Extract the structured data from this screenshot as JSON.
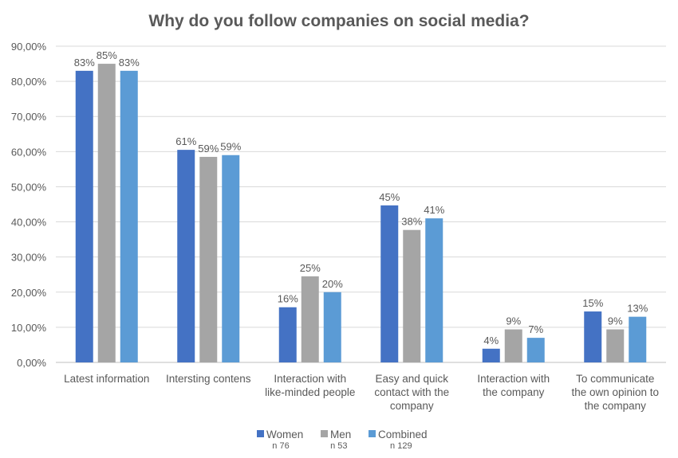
{
  "chart_data": {
    "type": "bar",
    "title": "Why do you follow companies on social media?",
    "categories": [
      [
        "Latest information"
      ],
      [
        "Intersting contens"
      ],
      [
        "Interaction with",
        "like-minded people"
      ],
      [
        "Easy and quick",
        "contact with the",
        "company"
      ],
      [
        "Interaction with",
        "the company"
      ],
      [
        "To communicate",
        "the own opinion to",
        "the company"
      ]
    ],
    "series": [
      {
        "name": "Women",
        "note": "n 76",
        "color": "#4472c4",
        "values": [
          0.83,
          0.605,
          0.157,
          0.447,
          0.039,
          0.145
        ],
        "labels": [
          "83%",
          "61%",
          "16%",
          "45%",
          "4%",
          "15%"
        ]
      },
      {
        "name": "Men",
        "note": "n 53",
        "color": "#a5a5a5",
        "values": [
          0.85,
          0.585,
          0.245,
          0.377,
          0.094,
          0.094
        ],
        "labels": [
          "85%",
          "59%",
          "25%",
          "38%",
          "9%",
          "9%"
        ]
      },
      {
        "name": "Combined",
        "note": "n 129",
        "color": "#5b9bd5",
        "values": [
          0.83,
          0.59,
          0.2,
          0.41,
          0.07,
          0.13
        ],
        "labels": [
          "83%",
          "59%",
          "20%",
          "41%",
          "7%",
          "13%"
        ]
      }
    ],
    "ylim": [
      0,
      0.9
    ],
    "yticks": [
      0,
      0.1,
      0.2,
      0.3,
      0.4,
      0.5,
      0.6,
      0.7,
      0.8,
      0.9
    ],
    "ytick_labels": [
      "0,00%",
      "10,00%",
      "20,00%",
      "30,00%",
      "40,00%",
      "50,00%",
      "60,00%",
      "70,00%",
      "80,00%",
      "90,00%"
    ],
    "grid": true,
    "legend_position": "bottom"
  }
}
